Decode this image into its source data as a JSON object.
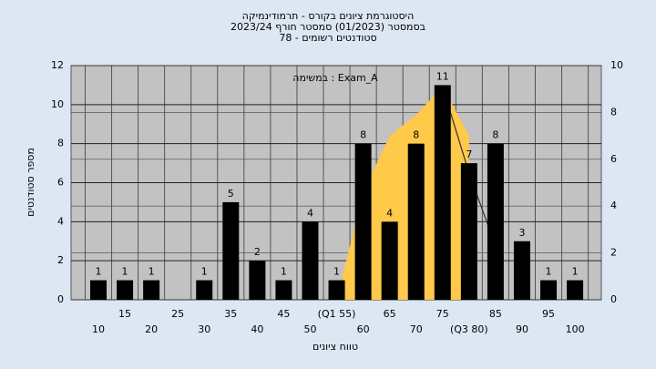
{
  "chart_data": {
    "type": "bar",
    "title": [
      "היסטוגרמת ציונים בקורס - תרמודינמיקה",
      "בסמסטר (01/2023) סמסטר חורף 2023/24",
      "סטודנטים רשומים - 78"
    ],
    "annotation": "במשימה : Exam_A",
    "x_label": "טווח ציונים",
    "y_label": "מספר סטודנטים",
    "categories": [
      "10",
      "15",
      "20",
      "25",
      "30",
      "35",
      "40",
      "45",
      "50",
      "(Q1 55)",
      "60",
      "65",
      "70",
      "75",
      "(Q3 80)",
      "85",
      "90",
      "95",
      "100"
    ],
    "series": [
      {
        "values": [
          1,
          1,
          1,
          0,
          1,
          5,
          2,
          1,
          4,
          1,
          8,
          4,
          8,
          11,
          7,
          8,
          3,
          1,
          1
        ],
        "colors": [
          "#e02828",
          "#e02828",
          "#e02828",
          "#e02828",
          "#e02828",
          "#e02828",
          "#e02828",
          "#e02828",
          "#e02828",
          "#9cc040",
          "#9cc040",
          "#9cc040",
          "#9cc040",
          "#9cc040",
          "#9cc040",
          "#9cc040",
          "#9cc040",
          "#9cc040",
          "#9cc040"
        ]
      },
      {
        "type": "area",
        "axis": "y2",
        "color": "#ffc94a",
        "values": [
          null,
          null,
          null,
          null,
          null,
          null,
          null,
          null,
          null,
          0,
          4.6,
          7,
          7.9,
          9.1,
          7,
          null,
          null,
          null,
          null
        ]
      },
      {
        "type": "line",
        "axis": "y2",
        "color": "#333333",
        "values": [
          null,
          null,
          null,
          null,
          null,
          null,
          null,
          null,
          null,
          null,
          null,
          null,
          null,
          9.1,
          5.4,
          2.3,
          null,
          null,
          null
        ]
      }
    ],
    "ylim": [
      0,
      12
    ],
    "yticks": [
      0,
      2,
      4,
      6,
      8,
      10,
      12
    ],
    "y2lim": [
      0,
      10
    ],
    "y2ticks": [
      0,
      2,
      4,
      6,
      8,
      10
    ],
    "grid": true
  }
}
